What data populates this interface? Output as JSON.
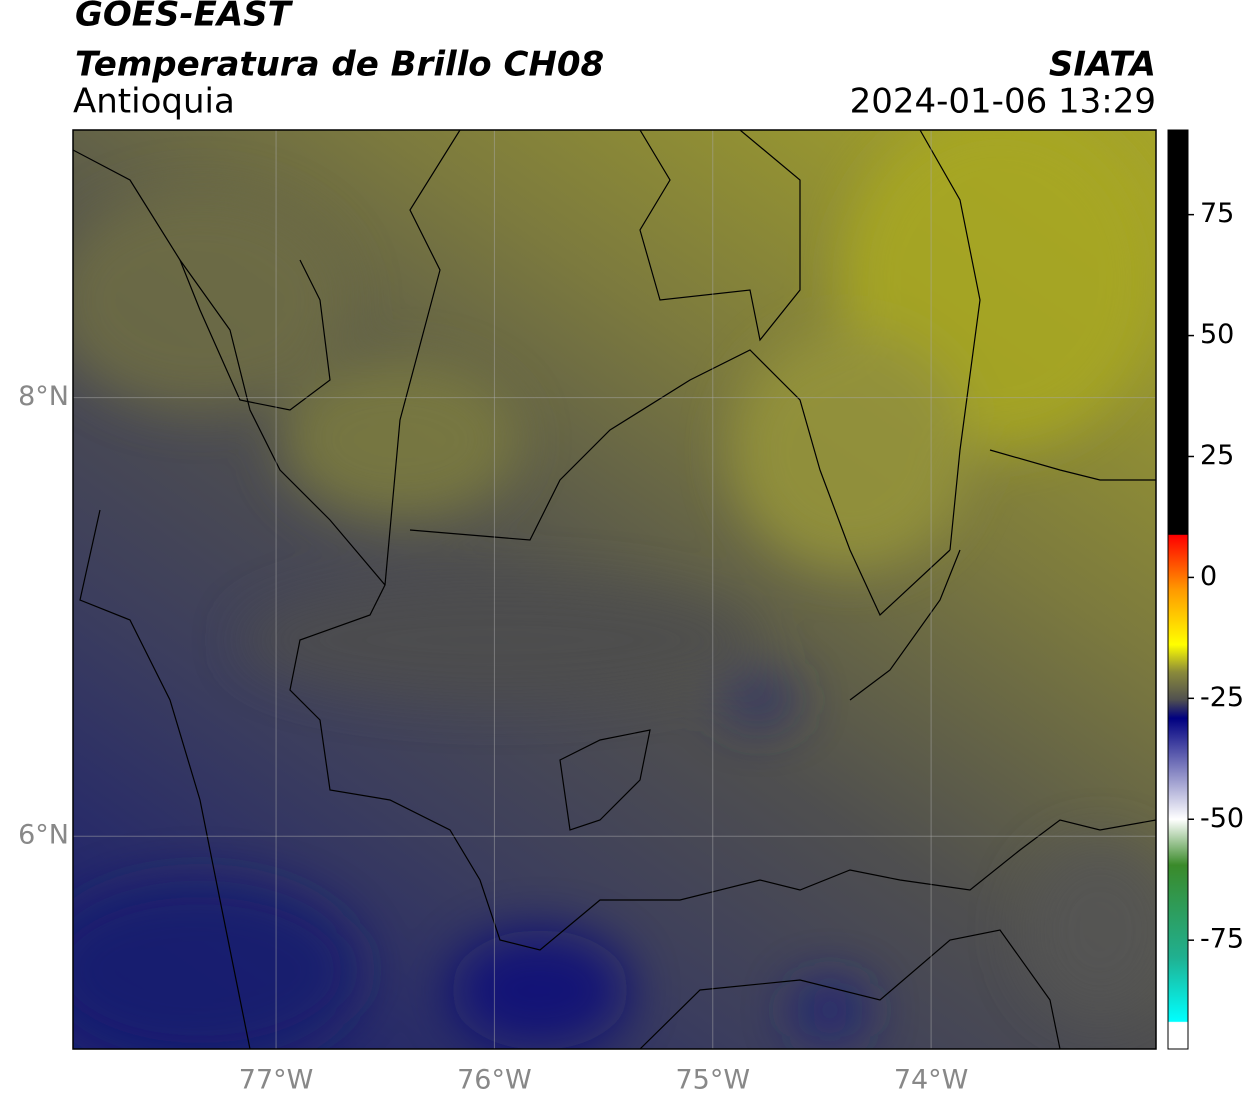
{
  "header": {
    "title": "GOES-EAST",
    "subtitle": "Temperatura de Brillo CH08",
    "region": "Antioquia",
    "source": "SIATA",
    "timestamp": "2024-01-06 13:29"
  },
  "map": {
    "xlim": [
      -77.93,
      -72.97
    ],
    "ylim": [
      5.03,
      9.22
    ],
    "xticks": [
      {
        "value": -77,
        "label": "77°W"
      },
      {
        "value": -76,
        "label": "76°W"
      },
      {
        "value": -75,
        "label": "75°W"
      },
      {
        "value": -74,
        "label": "74°W"
      }
    ],
    "yticks": [
      {
        "value": 8,
        "label": "8°N"
      },
      {
        "value": 6,
        "label": "6°N"
      }
    ]
  },
  "colorbar": {
    "lim": [
      -97.5,
      92.5
    ],
    "ticks": [
      75,
      50,
      25,
      0,
      -25,
      -50,
      -75
    ]
  }
}
